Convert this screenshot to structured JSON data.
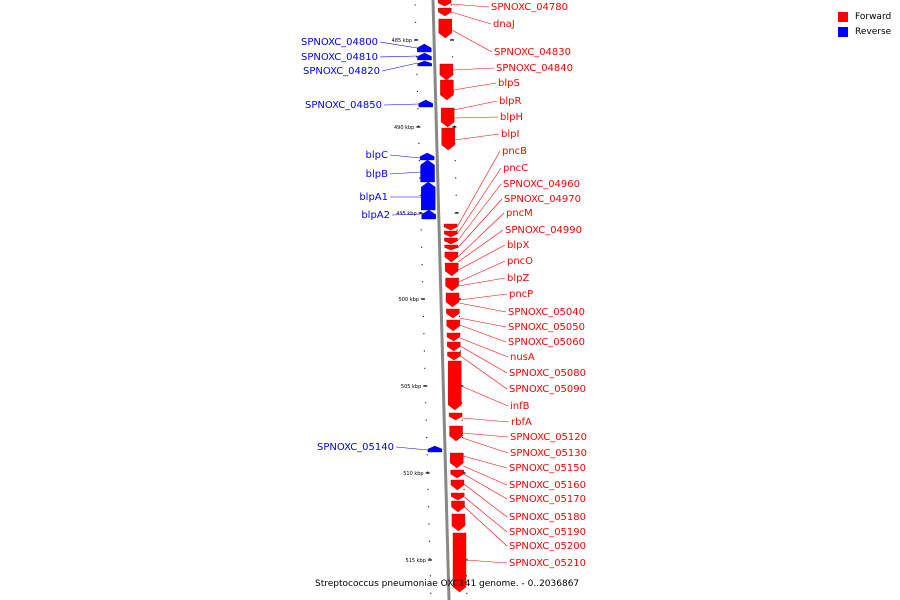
{
  "colors": {
    "forward": "#ff0000",
    "reverse": "#0000ff",
    "backbone": "#888888"
  },
  "legend": [
    {
      "label": "Forward",
      "color": "#ff0000"
    },
    {
      "label": "Reverse",
      "color": "#0000ff"
    }
  ],
  "caption": "Streptococcus pneumoniae OXC141 genome. - 0..2036867",
  "ruler_labels": [
    "485 kbp",
    "490 kbp",
    "495 kbp",
    "500 kbp",
    "505 kbp",
    "510 kbp",
    "515 kbp"
  ],
  "forward_genes": [
    "SPNOXC_04780",
    "dnaJ",
    "SPNOXC_04830",
    "SPNOXC_04840",
    "blpS",
    "blpR",
    "blpH",
    "blpI",
    "pncB",
    "pncC",
    "SPNOXC_04960",
    "SPNOXC_04970",
    "pncM",
    "SPNOXC_04990",
    "blpX",
    "pncO",
    "blpZ",
    "pncP",
    "SPNOXC_05040",
    "SPNOXC_05050",
    "SPNOXC_05060",
    "nusA",
    "SPNOXC_05080",
    "SPNOXC_05090",
    "infB",
    "rbfA",
    "SPNOXC_05120",
    "SPNOXC_05130",
    "SPNOXC_05150",
    "SPNOXC_05160",
    "SPNOXC_05170",
    "SPNOXC_05180",
    "SPNOXC_05190",
    "SPNOXC_05200",
    "SPNOXC_05210"
  ],
  "reverse_genes": [
    "SPNOXC_04800",
    "SPNOXC_04810",
    "SPNOXC_04820",
    "SPNOXC_04850",
    "blpC",
    "blpB",
    "blpA1",
    "blpA2",
    "SPNOXC_05140"
  ]
}
